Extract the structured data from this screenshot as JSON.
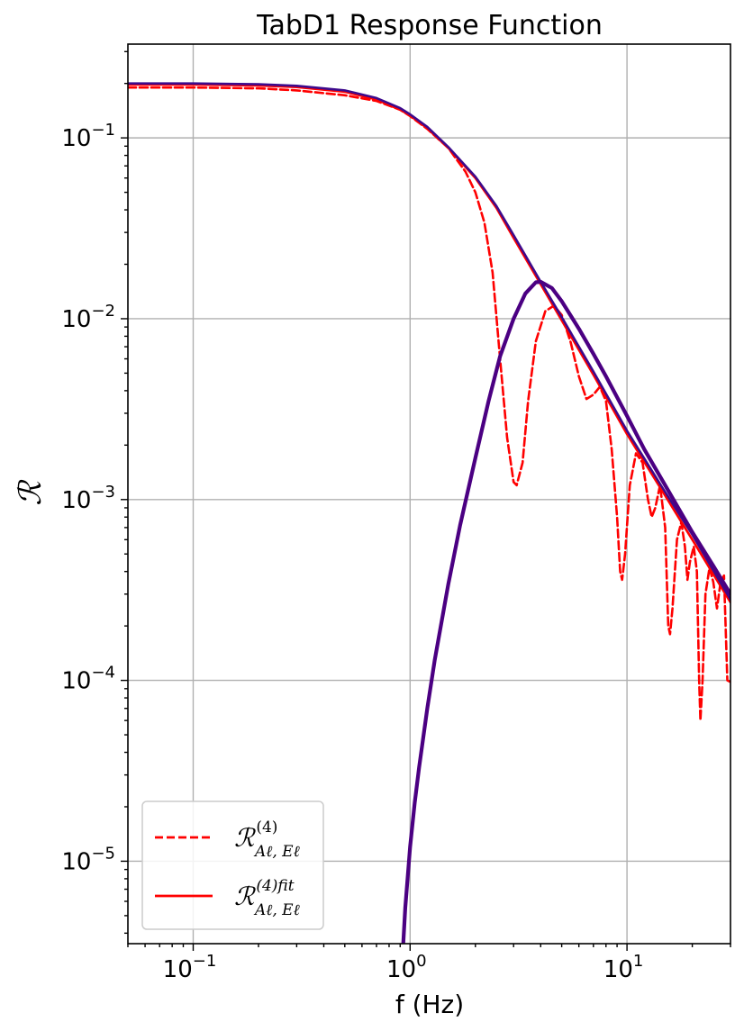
{
  "chart_data": {
    "type": "line",
    "title": "TabD1 Response Function",
    "xlabel": "f (Hz)",
    "ylabel": "ℛ",
    "xscale": "log",
    "yscale": "log",
    "xlim": [
      0.05,
      30
    ],
    "ylim": [
      3.5e-06,
      0.33
    ],
    "grid": true,
    "legend_position": "bottom-left",
    "x_ticks": [
      {
        "value": 0.1,
        "base": "10",
        "exp": "−1"
      },
      {
        "value": 1,
        "base": "10",
        "exp": "0"
      },
      {
        "value": 10,
        "base": "10",
        "exp": "1"
      }
    ],
    "y_ticks": [
      {
        "value": 0.1,
        "base": "10",
        "exp": "−1"
      },
      {
        "value": 0.01,
        "base": "10",
        "exp": "−2"
      },
      {
        "value": 0.001,
        "base": "10",
        "exp": "−3"
      },
      {
        "value": 0.0001,
        "base": "10",
        "exp": "−4"
      },
      {
        "value": 1e-05,
        "base": "10",
        "exp": "−5"
      }
    ],
    "series": [
      {
        "name": "ℛ",
        "name_super": "(4)",
        "name_sub": "Aℓ, Eℓ",
        "color": "#ff0000",
        "style": "dashed",
        "x": [
          0.05,
          0.1,
          0.2,
          0.3,
          0.5,
          0.7,
          0.9,
          1.0,
          1.2,
          1.5,
          1.8,
          2.0,
          2.2,
          2.4,
          2.6,
          2.8,
          3.0,
          3.1,
          3.3,
          3.5,
          3.8,
          4.2,
          4.6,
          5.0,
          5.5,
          6.0,
          6.5,
          7.0,
          7.5,
          8.0,
          8.5,
          9.0,
          9.3,
          9.5,
          9.8,
          10.3,
          11.0,
          11.8,
          12.5,
          13.0,
          13.5,
          14.2,
          15.0,
          15.5,
          15.8,
          16.2,
          17.0,
          17.8,
          18.5,
          19.0,
          19.5,
          20.3,
          21.0,
          21.5,
          21.8,
          22.3,
          23.0,
          24.0,
          25.0,
          26.0,
          27.0,
          28.0,
          29.0,
          30.0
        ],
        "y": [
          0.19,
          0.19,
          0.188,
          0.183,
          0.172,
          0.16,
          0.143,
          0.132,
          0.112,
          0.088,
          0.065,
          0.05,
          0.034,
          0.018,
          0.006,
          0.0022,
          0.00125,
          0.0012,
          0.0016,
          0.0035,
          0.0075,
          0.011,
          0.0118,
          0.0105,
          0.0074,
          0.0048,
          0.0036,
          0.0038,
          0.0042,
          0.0035,
          0.0019,
          0.0008,
          0.0004,
          0.00036,
          0.0005,
          0.0012,
          0.0018,
          0.0016,
          0.001,
          0.0008,
          0.0009,
          0.0012,
          0.0007,
          0.0002,
          0.00018,
          0.00025,
          0.0006,
          0.00075,
          0.00055,
          0.00036,
          0.00045,
          0.00055,
          0.0004,
          0.0001,
          6e-05,
          0.0001,
          0.0003,
          0.00042,
          0.00035,
          0.00025,
          0.00035,
          0.00038,
          0.0001,
          9.8e-05
        ]
      },
      {
        "name": "ℛ",
        "name_super": "(4)fit",
        "name_sub": "Aℓ, Eℓ",
        "color": "#ff0000",
        "style": "solid",
        "x": [
          0.05,
          0.1,
          0.2,
          0.3,
          0.5,
          0.7,
          0.9,
          1.0,
          1.2,
          1.5,
          2.0,
          2.5,
          3.0,
          4.0,
          5.0,
          7.0,
          10.0,
          15.0,
          20.0,
          30.0
        ],
        "y": [
          0.197,
          0.197,
          0.195,
          0.191,
          0.18,
          0.163,
          0.143,
          0.133,
          0.113,
          0.088,
          0.06,
          0.041,
          0.028,
          0.0155,
          0.0098,
          0.0049,
          0.0023,
          0.00105,
          0.0006,
          0.00027
        ]
      },
      {
        "color": "#3d0a8c",
        "style": "solid",
        "x": [
          0.05,
          0.1,
          0.2,
          0.3,
          0.5,
          0.7,
          0.9,
          1.0,
          1.2,
          1.5,
          2.0,
          2.5,
          3.0,
          4.0,
          5.0,
          7.0,
          10.0,
          15.0,
          20.0,
          30.0
        ],
        "y": [
          0.2,
          0.2,
          0.198,
          0.194,
          0.183,
          0.166,
          0.146,
          0.135,
          0.115,
          0.089,
          0.061,
          0.042,
          0.029,
          0.016,
          0.0102,
          0.0051,
          0.0024,
          0.0011,
          0.00064,
          0.00028
        ]
      },
      {
        "color": "#4b0082",
        "style": "solid-thick",
        "x": [
          0.93,
          0.95,
          1.0,
          1.05,
          1.1,
          1.2,
          1.3,
          1.5,
          1.7,
          2.0,
          2.3,
          2.6,
          3.0,
          3.4,
          3.8,
          4.0,
          4.5,
          5.0,
          6.0,
          7.0,
          8.0,
          10.0,
          12.0,
          15.0,
          20.0,
          25.0,
          30.0
        ],
        "y": [
          3.5e-06,
          5.5e-06,
          1.2e-05,
          2.1e-05,
          3.3e-05,
          7e-05,
          0.00013,
          0.00034,
          0.00072,
          0.0017,
          0.0035,
          0.0062,
          0.01,
          0.0138,
          0.0159,
          0.016,
          0.0148,
          0.0125,
          0.0088,
          0.0064,
          0.0048,
          0.0029,
          0.0019,
          0.0012,
          0.00066,
          0.00043,
          0.0003
        ]
      }
    ]
  }
}
